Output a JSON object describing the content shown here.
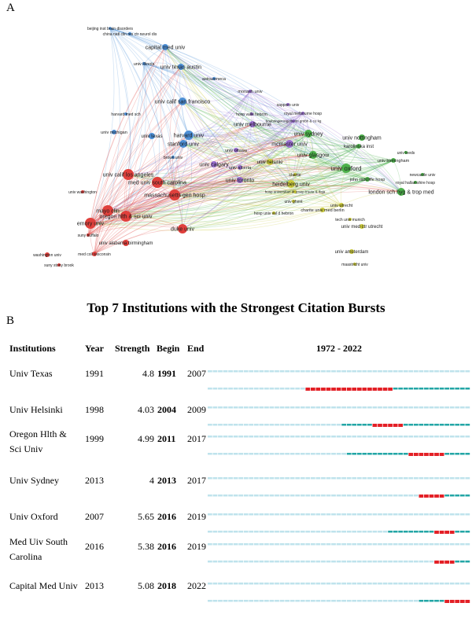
{
  "panel_a": {
    "letter": "A",
    "clusters": [
      {
        "name": "blue",
        "color": "#4d8fd6"
      },
      {
        "name": "red",
        "color": "#e0403c"
      },
      {
        "name": "green",
        "color": "#4cb04a"
      },
      {
        "name": "yellow",
        "color": "#c9c83a"
      },
      {
        "name": "purple",
        "color": "#9a6fd0"
      }
    ],
    "nodes": [
      {
        "label": "beijing inst brain disorders",
        "cluster": "blue"
      },
      {
        "label": "china natl clin res ctr neurol dis",
        "cluster": "blue"
      },
      {
        "label": "capital med univ",
        "cluster": "blue"
      },
      {
        "label": "univ illinois",
        "cluster": "blue"
      },
      {
        "label": "univ texas austin",
        "cluster": "blue"
      },
      {
        "label": "astrazeneca",
        "cluster": "blue"
      },
      {
        "label": "monash univ",
        "cluster": "purple"
      },
      {
        "label": "univ calif san francisco",
        "cluster": "blue"
      },
      {
        "label": "sapporo univ",
        "cluster": "purple"
      },
      {
        "label": "royal melbourne hosp",
        "cluster": "purple"
      },
      {
        "label": "harvard med sch",
        "cluster": "blue"
      },
      {
        "label": "hosp valle hebron",
        "cluster": "purple"
      },
      {
        "label": "boehringer ingelheim gmbh & co kg",
        "cluster": "purple"
      },
      {
        "label": "univ michigan",
        "cluster": "blue"
      },
      {
        "label": "univ melbourne",
        "cluster": "purple"
      },
      {
        "label": "harvard univ",
        "cluster": "blue"
      },
      {
        "label": "univ texas",
        "cluster": "blue"
      },
      {
        "label": "stanford univ",
        "cluster": "blue"
      },
      {
        "label": "univ sydney",
        "cluster": "green"
      },
      {
        "label": "univ nottingham",
        "cluster": "green"
      },
      {
        "label": "mcmaster univ",
        "cluster": "purple"
      },
      {
        "label": "karolinska inst",
        "cluster": "green"
      },
      {
        "label": "univ glasgow",
        "cluster": "green"
      },
      {
        "label": "univ leeds",
        "cluster": "green"
      },
      {
        "label": "univ birmingham",
        "cluster": "green"
      },
      {
        "label": "univ ottawa",
        "cluster": "purple"
      },
      {
        "label": "univ calgary",
        "cluster": "purple"
      },
      {
        "label": "univ helsinki",
        "cluster": "yellow"
      },
      {
        "label": "brown univ",
        "cluster": "blue"
      },
      {
        "label": "univ alberta",
        "cluster": "purple"
      },
      {
        "label": "univ oxford",
        "cluster": "green"
      },
      {
        "label": "univ calif los angeles",
        "cluster": "red"
      },
      {
        "label": "med univ south carolina",
        "cluster": "red"
      },
      {
        "label": "univ toronto",
        "cluster": "purple"
      },
      {
        "label": "charite",
        "cluster": "yellow"
      },
      {
        "label": "newcastle univ",
        "cluster": "green"
      },
      {
        "label": "john radcliffe hosp",
        "cluster": "green"
      },
      {
        "label": "royal hallamshire hosp",
        "cluster": "green"
      },
      {
        "label": "heidelberg univ",
        "cluster": "yellow"
      },
      {
        "label": "massachusetts gen hosp",
        "cluster": "red"
      },
      {
        "label": "london sch hyg & trop med",
        "cluster": "green"
      },
      {
        "label": "univ washington",
        "cluster": "red"
      },
      {
        "label": "hosp universitari dr josep trueta & ifaja",
        "cluster": "yellow"
      },
      {
        "label": "univ ghent",
        "cluster": "yellow"
      },
      {
        "label": "charite univ med berlin",
        "cluster": "yellow"
      },
      {
        "label": "univ utrecht",
        "cluster": "yellow"
      },
      {
        "label": "hosp univ val d hebron",
        "cluster": "yellow"
      },
      {
        "label": "tech univ munich",
        "cluster": "yellow"
      },
      {
        "label": "oregon hlth & sci univ",
        "cluster": "red"
      },
      {
        "label": "mayo clin",
        "cluster": "red"
      },
      {
        "label": "univ med ctr utrecht",
        "cluster": "yellow"
      },
      {
        "label": "emory univ",
        "cluster": "red"
      },
      {
        "label": "duke univ",
        "cluster": "red"
      },
      {
        "label": "univ alabama birmingham",
        "cluster": "red"
      },
      {
        "label": "suny buffalo",
        "cluster": "red"
      },
      {
        "label": "univ amsterdam",
        "cluster": "yellow"
      },
      {
        "label": "washington univ",
        "cluster": "red"
      },
      {
        "label": "med coll wisconsin",
        "cluster": "red"
      },
      {
        "label": "maastricht univ",
        "cluster": "yellow"
      },
      {
        "label": "suny stony brook",
        "cluster": "red"
      }
    ]
  },
  "panel_b": {
    "letter": "B",
    "title": "Top 7 Institutions with the Strongest Citation Bursts",
    "headers": {
      "institutions": "Institutions",
      "year": "Year",
      "strength": "Strength",
      "begin": "Begin",
      "end": "End",
      "range": "1972 - 2022"
    },
    "colors": {
      "inactive": "#bfe3ec",
      "active": "#23a6a6",
      "burst": "#e32026"
    },
    "rows": [
      {
        "name_line1": "Univ Texas",
        "name_line2": "",
        "year": "1991",
        "strength": "4.8",
        "begin": "1991",
        "end": "2007",
        "first_year": 1991,
        "burst_begin": 1991,
        "burst_end": 2007
      },
      {
        "name_line1": "Univ Helsinki",
        "name_line2": "",
        "year": "1998",
        "strength": "4.03",
        "begin": "2004",
        "end": "2009",
        "first_year": 1998,
        "burst_begin": 2004,
        "burst_end": 2009
      },
      {
        "name_line1": "Oregon Hlth &",
        "name_line2": "Sci Univ",
        "year": "1999",
        "strength": "4.99",
        "begin": "2011",
        "end": "2017",
        "first_year": 1999,
        "burst_begin": 2011,
        "burst_end": 2017
      },
      {
        "name_line1": "Univ Sydney",
        "name_line2": "",
        "year": "2013",
        "strength": "4",
        "begin": "2013",
        "end": "2017",
        "first_year": 2013,
        "burst_begin": 2013,
        "burst_end": 2017
      },
      {
        "name_line1": "Univ Oxford",
        "name_line2": "",
        "year": "2007",
        "strength": "5.65",
        "begin": "2016",
        "end": "2019",
        "first_year": 2007,
        "burst_begin": 2016,
        "burst_end": 2019
      },
      {
        "name_line1": "Med Uiv South",
        "name_line2": "Carolina",
        "year": "2016",
        "strength": "5.38",
        "begin": "2016",
        "end": "2019",
        "first_year": 2016,
        "burst_begin": 2016,
        "burst_end": 2019
      },
      {
        "name_line1": "Capital Med Univ",
        "name_line2": "",
        "year": "2013",
        "strength": "5.08",
        "begin": "2018",
        "end": "2022",
        "first_year": 2013,
        "burst_begin": 2018,
        "burst_end": 2022
      }
    ]
  }
}
